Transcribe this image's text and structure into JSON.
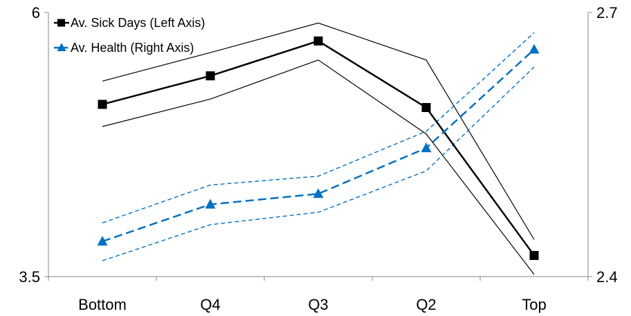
{
  "chart_data": {
    "type": "line",
    "categories": [
      "Bottom",
      "Q4",
      "Q3",
      "Q2",
      "Top"
    ],
    "y_left": {
      "range": [
        3.5,
        6
      ],
      "tick_labels": [
        "3.5",
        "6"
      ]
    },
    "y_right": {
      "range": [
        2.4,
        2.7
      ],
      "tick_labels": [
        "2.4",
        "2.7"
      ]
    },
    "grid": false,
    "legend": {
      "position": "top-left",
      "entries": [
        "Av. Sick Days (Left Axis)",
        "Av. Health (Right Axis)"
      ]
    },
    "series": [
      {
        "name": "Av. Sick Days (Left Axis)",
        "axis": "left",
        "color": "#000000",
        "marker": "square",
        "values": [
          5.13,
          5.4,
          5.73,
          5.1,
          3.7
        ],
        "upper": [
          5.35,
          5.62,
          5.9,
          5.55,
          3.85
        ],
        "lower": [
          4.92,
          5.18,
          5.55,
          4.85,
          3.52
        ]
      },
      {
        "name": "Av. Health (Right Axis)",
        "axis": "right",
        "color": "#0070C0",
        "marker": "triangle",
        "values": [
          2.44,
          2.482,
          2.494,
          2.546,
          2.658
        ],
        "upper": [
          2.461,
          2.504,
          2.514,
          2.565,
          2.677
        ],
        "lower": [
          2.418,
          2.459,
          2.473,
          2.52,
          2.638
        ]
      }
    ]
  }
}
